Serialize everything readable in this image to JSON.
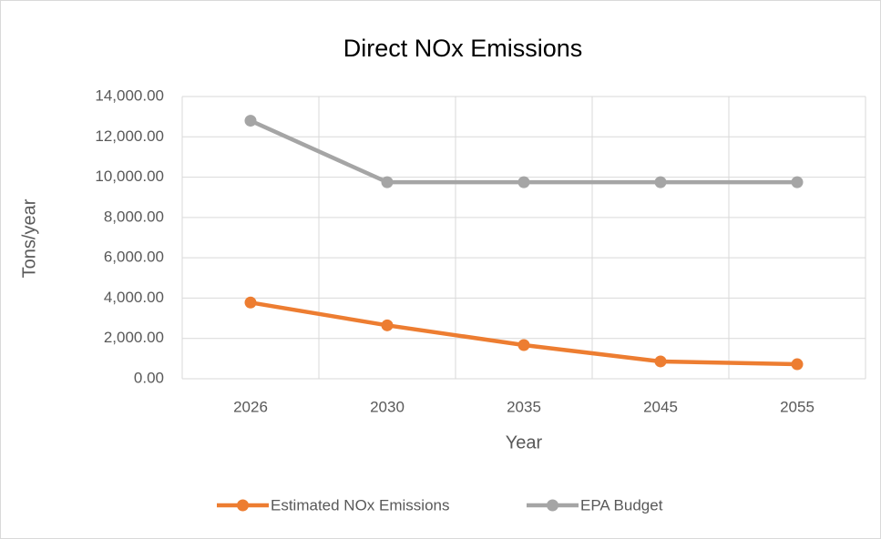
{
  "chart_data": {
    "type": "line",
    "title": "Direct NOx Emissions",
    "x_label": "Year",
    "y_label": "Tons/year",
    "categories": [
      "2026",
      "2030",
      "2035",
      "2045",
      "2055"
    ],
    "series": [
      {
        "name": "Estimated NOx Emissions",
        "color": "#ED7D31",
        "values": [
          3780,
          2650,
          1670,
          860,
          720
        ]
      },
      {
        "name": "EPA Budget",
        "color": "#A5A5A5",
        "values": [
          12800,
          9750,
          9750,
          9750,
          9750
        ]
      }
    ],
    "ylim": [
      0,
      14000
    ],
    "yticks": [
      {
        "value": 0,
        "label": "0.00"
      },
      {
        "value": 2000,
        "label": "2,000.00"
      },
      {
        "value": 4000,
        "label": "4,000.00"
      },
      {
        "value": 6000,
        "label": "6,000.00"
      },
      {
        "value": 8000,
        "label": "8,000.00"
      },
      {
        "value": 10000,
        "label": "10,000.00"
      },
      {
        "value": 12000,
        "label": "12,000.00"
      },
      {
        "value": 14000,
        "label": "14,000.00"
      }
    ],
    "grid": true,
    "legend": "bottom"
  }
}
